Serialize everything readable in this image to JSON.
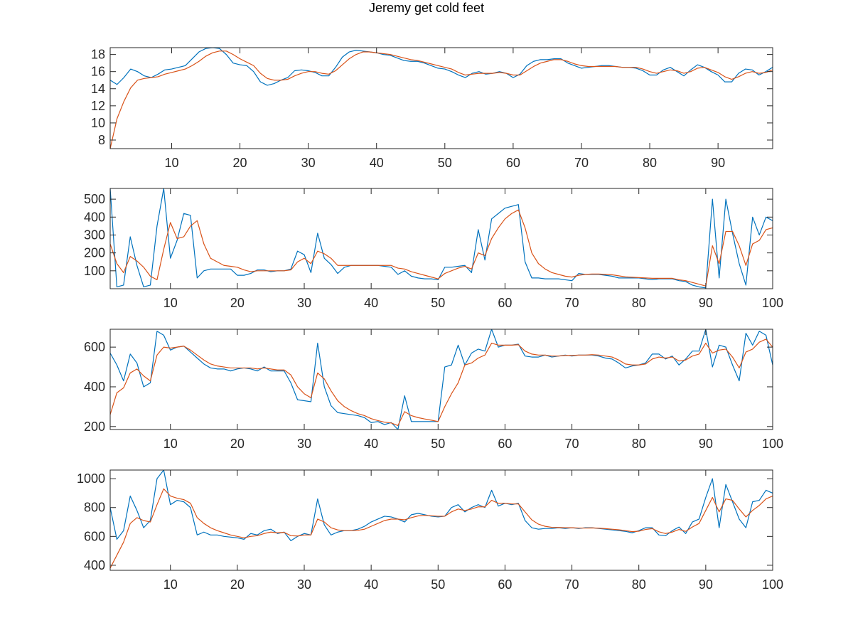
{
  "title": "Jeremy get cold feet",
  "colors": {
    "series_raw": "#0072BD",
    "series_smooth": "#D95319",
    "axes": "#262626"
  },
  "chart_data": [
    {
      "type": "line",
      "xlim": [
        1,
        98
      ],
      "ylim": [
        7,
        18.8
      ],
      "xticks": [
        10,
        20,
        30,
        40,
        50,
        60,
        70,
        80,
        90
      ],
      "yticks": [
        8,
        10,
        12,
        14,
        16,
        18
      ],
      "series": [
        {
          "values": [
            15.0,
            14.5,
            15.3,
            16.3,
            16.0,
            15.5,
            15.3,
            15.7,
            16.2,
            16.3,
            16.5,
            16.7,
            17.5,
            18.3,
            18.7,
            18.8,
            18.7,
            18.0,
            17.0,
            16.8,
            16.7,
            16.0,
            14.8,
            14.4,
            14.6,
            15.0,
            15.3,
            16.1,
            16.2,
            16.1,
            15.9,
            15.5,
            15.5,
            16.5,
            17.7,
            18.3,
            18.5,
            18.4,
            18.3,
            18.2,
            18.0,
            17.9,
            17.6,
            17.3,
            17.2,
            17.2,
            17.0,
            16.7,
            16.4,
            16.3,
            16.0,
            15.6,
            15.3,
            15.8,
            16.0,
            15.7,
            15.8,
            16.0,
            15.8,
            15.3,
            15.7,
            16.7,
            17.2,
            17.4,
            17.4,
            17.5,
            17.5,
            17.0,
            16.7,
            16.4,
            16.5,
            16.6,
            16.7,
            16.7,
            16.6,
            16.5,
            16.5,
            16.4,
            16.1,
            15.6,
            15.6,
            16.2,
            16.5,
            16.0,
            15.5,
            16.2,
            16.8,
            16.5,
            16.0,
            15.6,
            14.8,
            14.8,
            15.8,
            16.3,
            16.2,
            15.6,
            16.0,
            16.5,
            16.0
          ]
        },
        {
          "values": [
            7.0,
            10.5,
            12.5,
            14.1,
            15.0,
            15.2,
            15.3,
            15.4,
            15.7,
            15.9,
            16.1,
            16.3,
            16.7,
            17.2,
            17.8,
            18.2,
            18.4,
            18.4,
            18.0,
            17.5,
            17.1,
            16.7,
            15.8,
            15.2,
            15.0,
            15.0,
            15.1,
            15.5,
            15.8,
            16.0,
            16.0,
            15.8,
            15.7,
            16.1,
            16.8,
            17.5,
            18.0,
            18.3,
            18.3,
            18.2,
            18.1,
            18.0,
            17.8,
            17.6,
            17.4,
            17.3,
            17.1,
            16.9,
            16.7,
            16.5,
            16.3,
            15.9,
            15.6,
            15.7,
            15.8,
            15.8,
            15.8,
            15.9,
            15.8,
            15.6,
            15.6,
            16.1,
            16.6,
            17.0,
            17.2,
            17.4,
            17.4,
            17.2,
            16.9,
            16.7,
            16.6,
            16.6,
            16.6,
            16.6,
            16.6,
            16.5,
            16.5,
            16.5,
            16.3,
            16.0,
            15.8,
            16.0,
            16.2,
            16.1,
            15.8,
            16.0,
            16.4,
            16.5,
            16.2,
            15.9,
            15.4,
            15.1,
            15.4,
            15.8,
            16.0,
            15.8,
            15.9,
            16.2,
            16.1
          ]
        }
      ]
    },
    {
      "type": "line",
      "xlim": [
        1,
        100
      ],
      "ylim": [
        0,
        560
      ],
      "xticks": [
        10,
        20,
        30,
        40,
        50,
        60,
        70,
        80,
        90,
        100
      ],
      "yticks": [
        100,
        200,
        300,
        400,
        500
      ],
      "series": [
        {
          "values": [
            560,
            10,
            20,
            290,
            130,
            10,
            20,
            350,
            560,
            170,
            270,
            420,
            410,
            60,
            100,
            110,
            110,
            110,
            110,
            75,
            75,
            85,
            105,
            105,
            95,
            100,
            100,
            110,
            210,
            190,
            90,
            310,
            170,
            135,
            85,
            120,
            130,
            130,
            130,
            130,
            130,
            125,
            120,
            80,
            100,
            70,
            60,
            55,
            55,
            50,
            120,
            120,
            125,
            130,
            90,
            330,
            160,
            390,
            420,
            450,
            460,
            470,
            150,
            60,
            60,
            55,
            55,
            55,
            50,
            45,
            85,
            80,
            80,
            80,
            75,
            70,
            60,
            60,
            60,
            60,
            55,
            50,
            55,
            55,
            55,
            45,
            40,
            20,
            10,
            5,
            500,
            60,
            500,
            310,
            140,
            20,
            400,
            300,
            400,
            380,
            100
          ]
        },
        {
          "values": [
            250,
            140,
            90,
            180,
            155,
            120,
            70,
            50,
            220,
            370,
            280,
            290,
            350,
            380,
            250,
            170,
            150,
            130,
            125,
            120,
            105,
            95,
            100,
            100,
            100,
            100,
            100,
            105,
            150,
            170,
            140,
            210,
            195,
            170,
            130,
            130,
            130,
            130,
            130,
            130,
            130,
            130,
            130,
            115,
            110,
            95,
            85,
            75,
            65,
            55,
            85,
            100,
            115,
            125,
            110,
            200,
            185,
            280,
            340,
            390,
            420,
            440,
            340,
            200,
            140,
            110,
            90,
            80,
            70,
            65,
            75,
            80,
            82,
            82,
            80,
            78,
            72,
            66,
            64,
            62,
            60,
            58,
            58,
            58,
            58,
            50,
            45,
            35,
            25,
            15,
            240,
            140,
            320,
            320,
            240,
            130,
            250,
            270,
            330,
            340,
            240
          ]
        }
      ]
    },
    {
      "type": "line",
      "xlim": [
        1,
        100
      ],
      "ylim": [
        185,
        690
      ],
      "xticks": [
        10,
        20,
        30,
        40,
        50,
        60,
        70,
        80,
        90,
        100
      ],
      "yticks": [
        200,
        400,
        600
      ],
      "series": [
        {
          "values": [
            570,
            510,
            430,
            565,
            520,
            400,
            420,
            680,
            660,
            585,
            600,
            605,
            575,
            545,
            515,
            495,
            490,
            490,
            480,
            490,
            495,
            490,
            480,
            500,
            480,
            480,
            480,
            420,
            335,
            330,
            325,
            620,
            400,
            305,
            270,
            265,
            260,
            255,
            245,
            220,
            225,
            210,
            220,
            185,
            355,
            225,
            225,
            225,
            225,
            225,
            500,
            510,
            610,
            510,
            570,
            590,
            580,
            690,
            600,
            610,
            610,
            615,
            555,
            550,
            550,
            560,
            550,
            555,
            560,
            555,
            560,
            560,
            560,
            555,
            545,
            540,
            520,
            495,
            505,
            510,
            520,
            565,
            565,
            540,
            555,
            510,
            540,
            580,
            580,
            690,
            500,
            610,
            600,
            510,
            430,
            670,
            610,
            680,
            660,
            510
          ]
        },
        {
          "values": [
            260,
            370,
            395,
            470,
            490,
            455,
            430,
            560,
            600,
            595,
            600,
            605,
            585,
            560,
            535,
            515,
            505,
            500,
            495,
            495,
            495,
            495,
            490,
            495,
            490,
            485,
            485,
            460,
            400,
            365,
            345,
            470,
            440,
            380,
            330,
            300,
            280,
            265,
            255,
            240,
            230,
            222,
            218,
            205,
            275,
            255,
            245,
            238,
            232,
            225,
            300,
            365,
            420,
            510,
            520,
            545,
            560,
            620,
            610,
            610,
            610,
            612,
            580,
            565,
            560,
            560,
            555,
            555,
            558,
            558,
            560,
            560,
            562,
            560,
            555,
            550,
            535,
            515,
            510,
            510,
            515,
            540,
            550,
            545,
            550,
            530,
            535,
            555,
            565,
            620,
            570,
            585,
            590,
            550,
            495,
            575,
            590,
            625,
            640,
            600
          ]
        }
      ]
    },
    {
      "type": "line",
      "xlim": [
        1,
        100
      ],
      "ylim": [
        365,
        1060
      ],
      "xticks": [
        10,
        20,
        30,
        40,
        50,
        60,
        70,
        80,
        90,
        100
      ],
      "yticks": [
        400,
        600,
        800,
        1000
      ],
      "series": [
        {
          "values": [
            800,
            580,
            640,
            880,
            780,
            660,
            710,
            1000,
            1060,
            820,
            850,
            840,
            800,
            610,
            630,
            610,
            610,
            600,
            595,
            590,
            580,
            620,
            610,
            640,
            650,
            620,
            630,
            570,
            600,
            620,
            610,
            860,
            680,
            610,
            630,
            640,
            640,
            650,
            670,
            700,
            720,
            740,
            735,
            720,
            700,
            750,
            760,
            750,
            740,
            735,
            740,
            800,
            820,
            770,
            800,
            820,
            800,
            920,
            810,
            830,
            820,
            830,
            710,
            660,
            650,
            655,
            655,
            660,
            655,
            660,
            655,
            660,
            660,
            655,
            650,
            645,
            640,
            635,
            625,
            640,
            660,
            660,
            610,
            605,
            640,
            665,
            620,
            700,
            720,
            870,
            1000,
            660,
            960,
            840,
            720,
            660,
            840,
            850,
            920,
            900,
            710
          ]
        },
        {
          "values": [
            380,
            470,
            560,
            690,
            730,
            710,
            700,
            820,
            930,
            880,
            865,
            855,
            830,
            730,
            690,
            660,
            640,
            625,
            610,
            600,
            590,
            600,
            605,
            620,
            630,
            625,
            628,
            605,
            603,
            610,
            610,
            720,
            700,
            660,
            645,
            640,
            640,
            642,
            650,
            670,
            690,
            710,
            720,
            720,
            715,
            730,
            742,
            746,
            743,
            740,
            740,
            770,
            790,
            780,
            790,
            805,
            805,
            850,
            830,
            830,
            825,
            825,
            770,
            715,
            685,
            670,
            663,
            662,
            660,
            660,
            658,
            658,
            659,
            657,
            654,
            650,
            646,
            640,
            633,
            636,
            648,
            654,
            632,
            620,
            630,
            648,
            635,
            665,
            690,
            780,
            870,
            770,
            860,
            850,
            790,
            735,
            780,
            815,
            860,
            880,
            800
          ]
        }
      ]
    }
  ]
}
